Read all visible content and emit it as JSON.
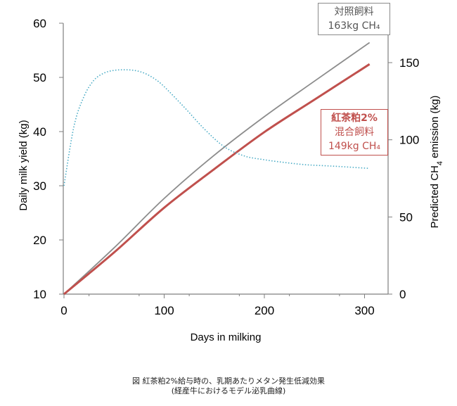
{
  "chart_data": {
    "type": "line",
    "xlabel": "Days in milking",
    "ylabel_left": "Daily milk yield (kg)",
    "ylabel_right": "Predicted CH4 emission (kg)",
    "x_ticks": [
      "0",
      "100",
      "200",
      "300"
    ],
    "y_left_ticks": [
      "10",
      "20",
      "30",
      "40",
      "50",
      "60"
    ],
    "y_right_ticks": [
      "0",
      "50",
      "100",
      "150"
    ],
    "xlim": [
      0,
      320
    ],
    "ylim_left": [
      10,
      60
    ],
    "ylim_right": [
      0,
      175
    ],
    "series": [
      {
        "name": "対照飼料",
        "axis": "right",
        "color": "#8c8c8c",
        "style": "solid",
        "x": [
          0,
          50,
          100,
          150,
          200,
          250,
          305
        ],
        "y": [
          0,
          30,
          62,
          90,
          115,
          138,
          163
        ]
      },
      {
        "name": "紅茶粕2%混合飼料",
        "axis": "right",
        "color": "#c0504d",
        "style": "solid",
        "x": [
          0,
          50,
          100,
          150,
          200,
          250,
          305
        ],
        "y": [
          0,
          27,
          56,
          81,
          105,
          126,
          149
        ]
      },
      {
        "axis": "left",
        "color": "#4bacc6",
        "style": "dotted",
        "x": [
          0,
          10,
          20,
          30,
          40,
          50,
          60,
          70,
          80,
          90,
          100,
          120,
          140,
          160,
          180,
          200,
          220,
          240,
          260,
          280,
          305
        ],
        "y": [
          30,
          41,
          46.5,
          49.5,
          50.8,
          51.3,
          51.4,
          51.3,
          50.8,
          49.8,
          48.3,
          44.5,
          40.5,
          37.2,
          35.5,
          34.8,
          34.3,
          33.9,
          33.7,
          33.5,
          33.2
        ]
      }
    ]
  },
  "labels": {
    "control_line1": "対照飼料",
    "control_line2": "163kg CH₄",
    "tea_line1": "紅茶粕2%",
    "tea_line2": "混合飼料",
    "tea_line3": "149kg CH₄"
  },
  "caption": {
    "line1": "図 紅茶粕2%給与時の、乳期あたりメタン発生低減効果",
    "line2": "(経産牛におけるモデル泌乳曲線)"
  }
}
